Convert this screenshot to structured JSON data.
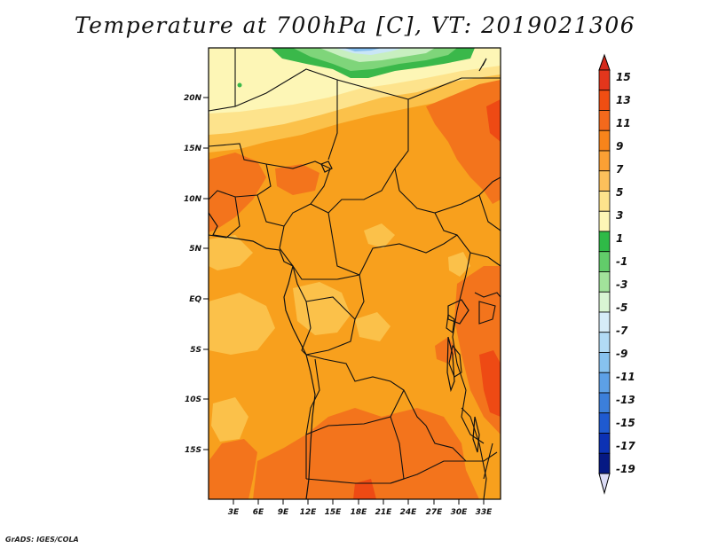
{
  "title": "Temperature at 700hPa [C], VT: 2019021306",
  "credit": "GrADS: IGES/COLA",
  "map": {
    "lat_labels": [
      "20N",
      "15N",
      "10N",
      "5N",
      "EQ",
      "5S",
      "10S",
      "15S"
    ],
    "lon_labels": [
      "3E",
      "6E",
      "9E",
      "12E",
      "15E",
      "18E",
      "21E",
      "24E",
      "27E",
      "30E",
      "33E"
    ]
  },
  "colorbar": {
    "labels": [
      "15",
      "13",
      "11",
      "9",
      "7",
      "5",
      "3",
      "1",
      "-1",
      "-3",
      "-5",
      "-7",
      "-9",
      "-11",
      "-13",
      "-15",
      "-17",
      "-19"
    ],
    "colors": [
      "#e3361c",
      "#f04e12",
      "#f3691c",
      "#f8841b",
      "#fba034",
      "#fcc05b",
      "#fde38c",
      "#fdf6b6",
      "#2fba47",
      "#62cc6a",
      "#a2e29b",
      "#d9f5d3",
      "#d6ecf8",
      "#b2dbf5",
      "#87c2ef",
      "#5da0e6",
      "#3c7fda",
      "#1f5ad0",
      "#0c32b4",
      "#061983"
    ],
    "top_arrow_color": "#d42a1c",
    "bottom_arrow_color": "#dcdcf6"
  }
}
